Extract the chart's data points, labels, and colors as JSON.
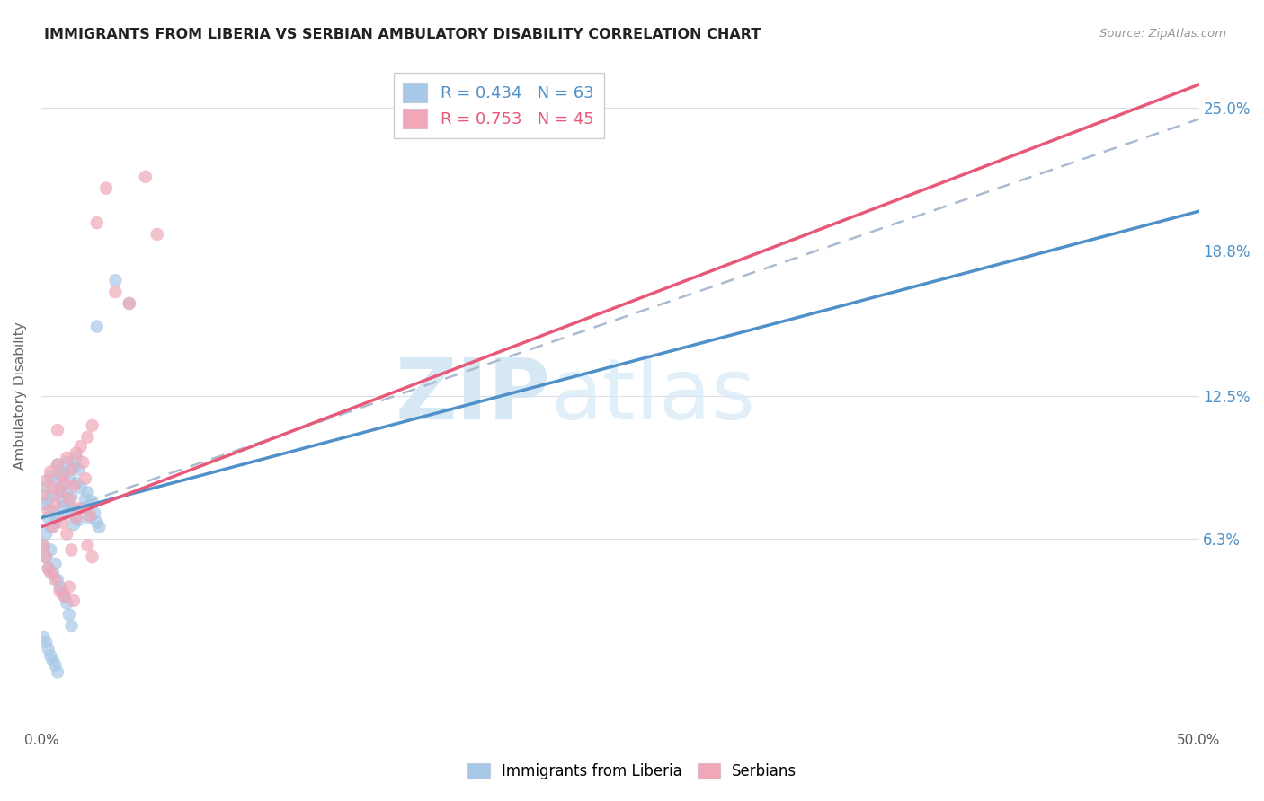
{
  "title": "IMMIGRANTS FROM LIBERIA VS SERBIAN AMBULATORY DISABILITY CORRELATION CHART",
  "source": "Source: ZipAtlas.com",
  "ylabel": "Ambulatory Disability",
  "ytick_labels": [
    "25.0%",
    "18.8%",
    "12.5%",
    "6.3%"
  ],
  "ytick_values": [
    0.25,
    0.188,
    0.125,
    0.063
  ],
  "xlim": [
    0.0,
    0.5
  ],
  "ylim": [
    -0.02,
    0.27
  ],
  "watermark_zip": "ZIP",
  "watermark_atlas": "atlas",
  "blue_color": "#A8C8E8",
  "pink_color": "#F0A8B8",
  "blue_line_color": "#5090C8",
  "pink_line_color": "#E85878",
  "dashed_line_color": "#AABBD0",
  "blue_R": "0.434",
  "blue_N": "63",
  "pink_R": "0.753",
  "pink_N": "45",
  "blue_scatter_x": [
    0.001,
    0.002,
    0.002,
    0.003,
    0.003,
    0.004,
    0.004,
    0.005,
    0.005,
    0.006,
    0.006,
    0.007,
    0.007,
    0.008,
    0.008,
    0.009,
    0.009,
    0.01,
    0.01,
    0.011,
    0.011,
    0.012,
    0.012,
    0.013,
    0.013,
    0.014,
    0.014,
    0.015,
    0.015,
    0.016,
    0.016,
    0.017,
    0.018,
    0.019,
    0.02,
    0.021,
    0.022,
    0.023,
    0.024,
    0.025,
    0.001,
    0.002,
    0.003,
    0.004,
    0.005,
    0.006,
    0.007,
    0.008,
    0.009,
    0.01,
    0.011,
    0.012,
    0.013,
    0.001,
    0.002,
    0.003,
    0.004,
    0.005,
    0.006,
    0.007,
    0.024,
    0.032,
    0.038
  ],
  "blue_scatter_y": [
    0.078,
    0.065,
    0.085,
    0.08,
    0.072,
    0.09,
    0.068,
    0.082,
    0.075,
    0.088,
    0.07,
    0.095,
    0.073,
    0.084,
    0.092,
    0.086,
    0.079,
    0.091,
    0.077,
    0.083,
    0.096,
    0.089,
    0.074,
    0.076,
    0.081,
    0.094,
    0.069,
    0.087,
    0.098,
    0.071,
    0.093,
    0.085,
    0.076,
    0.08,
    0.083,
    0.072,
    0.079,
    0.074,
    0.07,
    0.068,
    0.06,
    0.055,
    0.05,
    0.058,
    0.048,
    0.052,
    0.045,
    0.042,
    0.04,
    0.038,
    0.035,
    0.03,
    0.025,
    0.02,
    0.018,
    0.015,
    0.012,
    0.01,
    0.008,
    0.005,
    0.155,
    0.175,
    0.165
  ],
  "pink_scatter_x": [
    0.001,
    0.002,
    0.003,
    0.004,
    0.005,
    0.006,
    0.007,
    0.008,
    0.009,
    0.01,
    0.011,
    0.012,
    0.013,
    0.014,
    0.015,
    0.016,
    0.017,
    0.018,
    0.019,
    0.02,
    0.021,
    0.022,
    0.001,
    0.002,
    0.003,
    0.004,
    0.005,
    0.006,
    0.007,
    0.008,
    0.009,
    0.01,
    0.011,
    0.012,
    0.013,
    0.014,
    0.015,
    0.02,
    0.022,
    0.024,
    0.028,
    0.032,
    0.038,
    0.045,
    0.05
  ],
  "pink_scatter_y": [
    0.082,
    0.088,
    0.075,
    0.092,
    0.085,
    0.078,
    0.095,
    0.083,
    0.09,
    0.087,
    0.098,
    0.08,
    0.093,
    0.086,
    0.1,
    0.076,
    0.103,
    0.096,
    0.089,
    0.107,
    0.073,
    0.112,
    0.06,
    0.055,
    0.05,
    0.048,
    0.068,
    0.045,
    0.11,
    0.04,
    0.07,
    0.038,
    0.065,
    0.042,
    0.058,
    0.036,
    0.072,
    0.06,
    0.055,
    0.2,
    0.215,
    0.17,
    0.165,
    0.22,
    0.195
  ],
  "blue_trendline_x": [
    0.0,
    0.5
  ],
  "blue_trendline_y": [
    0.072,
    0.205
  ],
  "pink_trendline_x": [
    0.0,
    0.5
  ],
  "pink_trendline_y": [
    0.068,
    0.26
  ],
  "dash_trendline_x": [
    0.0,
    0.5
  ],
  "dash_trendline_y": [
    0.072,
    0.245
  ]
}
